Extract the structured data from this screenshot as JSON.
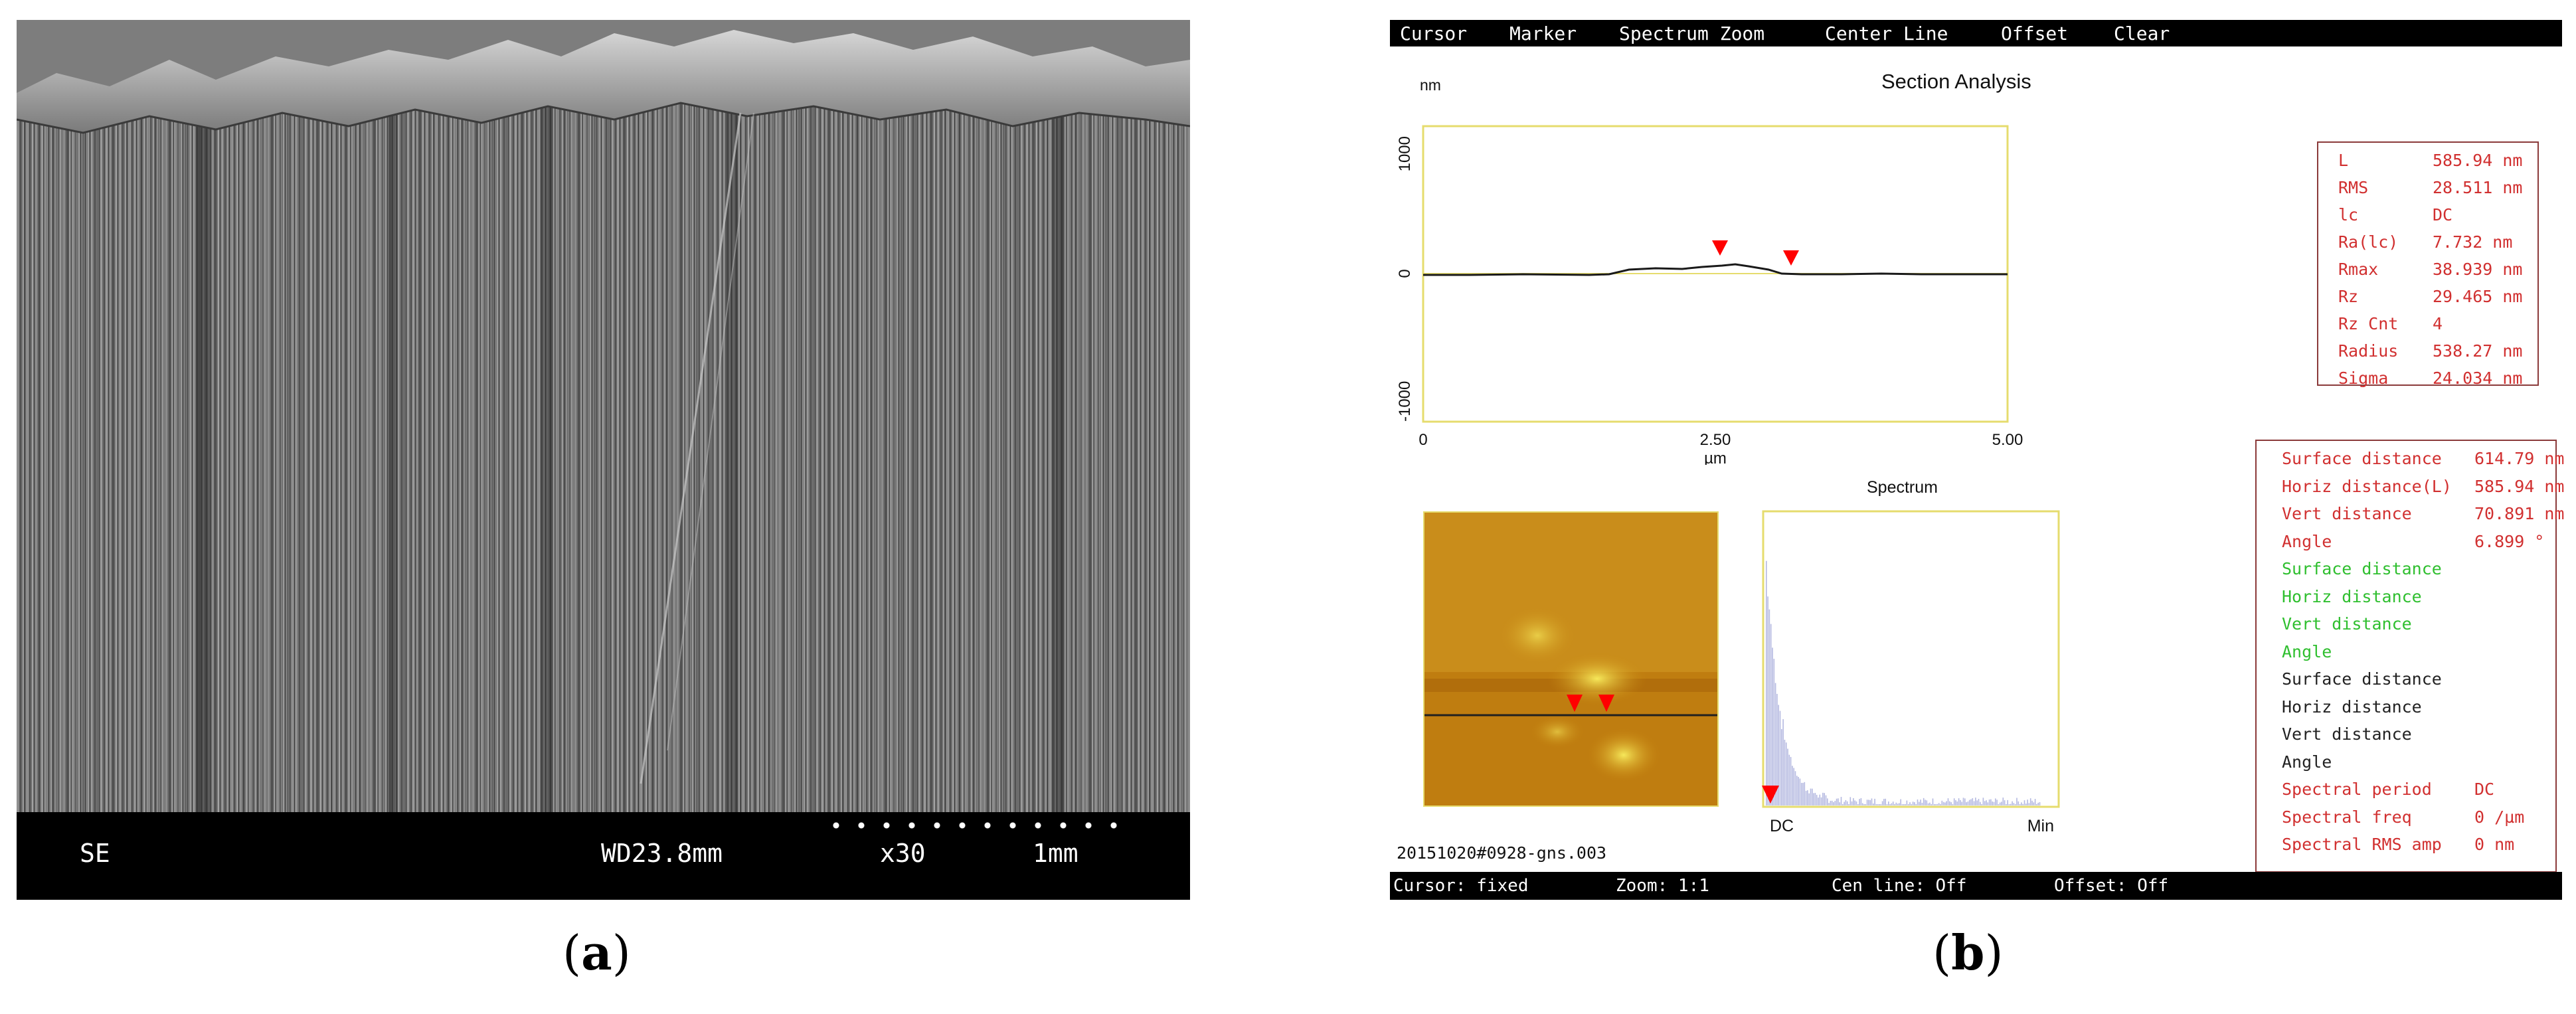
{
  "panel_a": {
    "caption_open": "(",
    "caption_letter": "a",
    "caption_close": ")",
    "sem_bar": {
      "detector": "SE",
      "working_distance": "WD23.8mm",
      "magnification": "x30",
      "scale": "1mm"
    }
  },
  "panel_b": {
    "caption_open": "(",
    "caption_letter": "b",
    "caption_close": ")",
    "menu": [
      "Cursor",
      "Marker",
      "Spectrum Zoom",
      "Center Line",
      "Offset",
      "Clear"
    ],
    "section_title": "Section Analysis",
    "y_unit": "nm",
    "y_ticks": [
      "1000",
      "0",
      "-1000"
    ],
    "x_ticks": [
      "0",
      "2.50",
      "5.00"
    ],
    "x_unit": "µm",
    "spectrum_title": "Spectrum",
    "spectrum_x_left": "DC",
    "spectrum_x_right": "Min",
    "filename": "20151020#0928-gns.003",
    "roughness": [
      {
        "label": "L",
        "value": "585.94 nm"
      },
      {
        "label": "RMS",
        "value": "28.511 nm"
      },
      {
        "label": "lc",
        "value": "DC"
      },
      {
        "label": "Ra(lc)",
        "value": "7.732 nm"
      },
      {
        "label": "Rmax",
        "value": "38.939 nm"
      },
      {
        "label": "Rz",
        "value": "29.465 nm"
      },
      {
        "label": "Rz Cnt",
        "value": "4"
      },
      {
        "label": "Radius",
        "value": "538.27 nm"
      },
      {
        "label": "Sigma",
        "value": "24.034 nm"
      }
    ],
    "distances": [
      {
        "label": "Surface distance",
        "value": "614.79 nm",
        "color": "#d13030"
      },
      {
        "label": "Horiz distance(L)",
        "value": "585.94 nm",
        "color": "#d13030"
      },
      {
        "label": "Vert distance",
        "value": "70.891 nm",
        "color": "#d13030"
      },
      {
        "label": "Angle",
        "value": "6.899 °",
        "color": "#d13030"
      },
      {
        "label": "Surface distance",
        "value": "",
        "color": "#2fbf2f"
      },
      {
        "label": "Horiz distance",
        "value": "",
        "color": "#2fbf2f"
      },
      {
        "label": "Vert distance",
        "value": "",
        "color": "#2fbf2f"
      },
      {
        "label": "Angle",
        "value": "",
        "color": "#2fbf2f"
      },
      {
        "label": "Surface distance",
        "value": "",
        "color": "#222222"
      },
      {
        "label": "Horiz distance",
        "value": "",
        "color": "#222222"
      },
      {
        "label": "Vert distance",
        "value": "",
        "color": "#222222"
      },
      {
        "label": "Angle",
        "value": "",
        "color": "#222222"
      },
      {
        "label": "Spectral period",
        "value": "DC",
        "color": "#d13030"
      },
      {
        "label": "Spectral freq",
        "value": "0 /µm",
        "color": "#d13030"
      },
      {
        "label": "Spectral RMS amp",
        "value": "0 nm",
        "color": "#d13030"
      }
    ],
    "status": [
      "Cursor: fixed",
      "Zoom: 1:1",
      "Cen line: Off",
      "Offset: Off"
    ]
  },
  "colors": {
    "plot_frame": "#e6dc6e",
    "marker": "#ff0000",
    "afm_base": "#c7860f",
    "afm_highlight": "#f1e040",
    "spectrum_bars": "#b4b8e0",
    "text_red": "#d13030"
  }
}
